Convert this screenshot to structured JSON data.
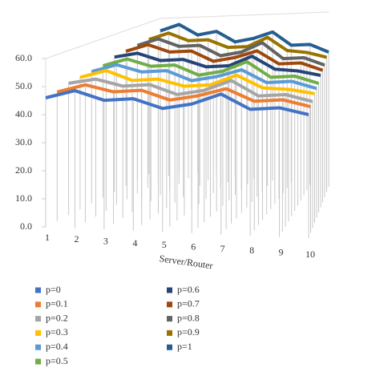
{
  "chart_data": {
    "type": "line3d",
    "x_label": "Server/Router",
    "categories": [
      "1",
      "2",
      "3",
      "4",
      "5",
      "6",
      "7",
      "8",
      "9",
      "10"
    ],
    "ylim": [
      0,
      60
    ],
    "yticks": [
      {
        "value": 0,
        "label": "0.0"
      },
      {
        "value": 10,
        "label": "10.0"
      },
      {
        "value": 20,
        "label": "20.0"
      },
      {
        "value": 30,
        "label": "30.0"
      },
      {
        "value": 40,
        "label": "40.0"
      },
      {
        "value": 50,
        "label": "50.0"
      },
      {
        "value": 60,
        "label": "60.0"
      }
    ],
    "series": [
      {
        "name": "p=0",
        "color": "#4472c4",
        "values": [
          46,
          49,
          46,
          47,
          44,
          46,
          50,
          45,
          46,
          44
        ]
      },
      {
        "name": "p=0.1",
        "color": "#ed7d31",
        "values": [
          46,
          49,
          47,
          48,
          45,
          47,
          50,
          46,
          47,
          45
        ]
      },
      {
        "name": "p=0.2",
        "color": "#a5a5a5",
        "values": [
          47,
          49,
          47,
          48,
          45,
          47,
          51,
          46,
          47,
          45
        ]
      },
      {
        "name": "p=0.3",
        "color": "#ffc000",
        "values": [
          47,
          50,
          47,
          48,
          46,
          47,
          51,
          47,
          47,
          46
        ]
      },
      {
        "name": "p=0.4",
        "color": "#5b9bd5",
        "values": [
          47,
          50,
          48,
          49,
          46,
          48,
          51,
          47,
          48,
          46
        ]
      },
      {
        "name": "p=0.5",
        "color": "#70ad47",
        "values": [
          47,
          50,
          48,
          49,
          46,
          48,
          52,
          47,
          48,
          46
        ]
      },
      {
        "name": "p=0.6",
        "color": "#264478",
        "values": [
          48,
          50,
          48,
          49,
          47,
          48,
          52,
          48,
          48,
          47
        ]
      },
      {
        "name": "p=0.7",
        "color": "#9e480e",
        "values": [
          48,
          51,
          49,
          50,
          47,
          49,
          52,
          48,
          49,
          47
        ]
      },
      {
        "name": "p=0.8",
        "color": "#636363",
        "values": [
          48,
          51,
          49,
          50,
          47,
          49,
          53,
          48,
          49,
          47
        ]
      },
      {
        "name": "p=0.9",
        "color": "#997300",
        "values": [
          48,
          51,
          49,
          50,
          48,
          49,
          53,
          49,
          49,
          48
        ]
      },
      {
        "name": "p=1",
        "color": "#255e91",
        "values": [
          49,
          52,
          49,
          51,
          48,
          50,
          53,
          49,
          50,
          48
        ]
      }
    ]
  }
}
